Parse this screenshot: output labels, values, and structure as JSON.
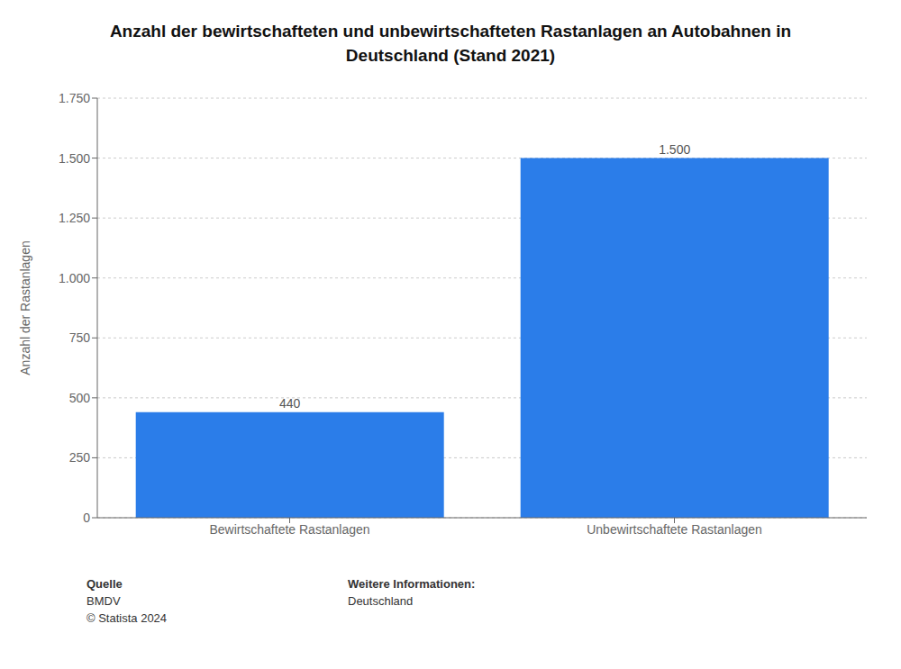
{
  "chart_data": {
    "type": "bar",
    "title": "Anzahl der bewirtschafteten und unbewirtschafteten Rastanlagen an Autobahnen in\nDeutschland (Stand 2021)",
    "categories": [
      "Bewirtschaftete Rastanlagen",
      "Unbewirtschaftete Rastanlagen"
    ],
    "values": [
      440,
      1500
    ],
    "value_labels": [
      "440",
      "1.500"
    ],
    "data_labels": true,
    "color": "#2b7de9",
    "ylabel": "Anzahl der Rastanlagen",
    "ylim": [
      0,
      1750
    ],
    "yticks": [
      0,
      250,
      500,
      750,
      {
        "value": 1000,
        "label": "1.000"
      },
      {
        "value": 1250,
        "label": "1.250"
      },
      {
        "value": 1500,
        "label": "1.500"
      },
      {
        "value": 1750,
        "label": "1.750"
      }
    ],
    "grid": true,
    "annotations": [
      "Quelle",
      "BMDV",
      "© Statista 2024",
      "Weitere Informationen:",
      "Deutschland"
    ]
  }
}
